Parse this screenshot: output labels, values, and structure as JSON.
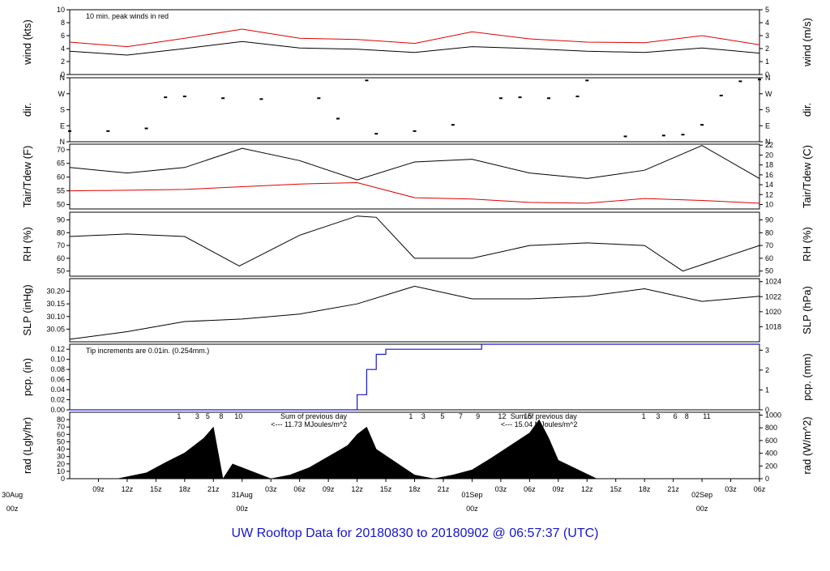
{
  "title": "UW Rooftop Data for 20180830  to  20180902 @ 06:57:37  (UTC)",
  "chart_data": [
    {
      "type": "line",
      "id": "wind",
      "ylabel": "wind (kts)",
      "ylabel_right": "wind (m/s)",
      "ylim": [
        0,
        10
      ],
      "yticks": [
        "0",
        "2",
        "4",
        "6",
        "8",
        "10"
      ],
      "right_ylim": [
        0,
        5
      ],
      "right_yticks": [
        "0",
        "1",
        "2",
        "3",
        "4",
        "5"
      ],
      "annotation": "10 min. peak winds in red",
      "series": [
        {
          "color": "#000000",
          "x": [
            0,
            6,
            12,
            18,
            24,
            30,
            36,
            42,
            48,
            54,
            60,
            66,
            72
          ],
          "y": [
            3.6,
            3.0,
            4.0,
            5.1,
            4.1,
            3.9,
            3.4,
            4.3,
            4.0,
            3.6,
            3.4,
            4.1,
            3.3
          ]
        },
        {
          "color": "#dd0000",
          "x": [
            0,
            6,
            12,
            18,
            24,
            30,
            36,
            42,
            48,
            54,
            60,
            66,
            72
          ],
          "y": [
            5.0,
            4.3,
            5.6,
            7.0,
            5.6,
            5.4,
            4.8,
            6.6,
            5.5,
            5.0,
            4.9,
            6.0,
            4.6
          ]
        }
      ]
    },
    {
      "type": "scatter",
      "id": "dir",
      "ylabel": "dir.",
      "ylabel_right": "dir.",
      "ylim": [
        0,
        360
      ],
      "yticks": [
        "N",
        "E",
        "S",
        "W",
        "N"
      ],
      "right_yticks": [
        "N",
        "E",
        "S",
        "W",
        "N"
      ],
      "series": [
        {
          "color": "#000000",
          "x": [
            0,
            4,
            8,
            10,
            12,
            16,
            20,
            26,
            28,
            31,
            32,
            36,
            40,
            45,
            47,
            50,
            53,
            54,
            58,
            62,
            64,
            66,
            68,
            70,
            72
          ],
          "y": [
            60,
            60,
            75,
            250,
            255,
            245,
            240,
            245,
            130,
            345,
            45,
            60,
            95,
            245,
            250,
            245,
            255,
            345,
            30,
            35,
            40,
            95,
            260,
            340,
            350
          ]
        }
      ]
    },
    {
      "type": "line",
      "id": "temp",
      "ylabel": "Tair/Tdew (F)",
      "ylabel_right": "Tair/Tdew (C)",
      "ylim": [
        48.4,
        72
      ],
      "yticks": [
        "50",
        "55",
        "60",
        "65",
        "70"
      ],
      "right_ylim": [
        9.1,
        22.2
      ],
      "right_yticks": [
        "10",
        "12",
        "14",
        "16",
        "18",
        "20",
        "22"
      ],
      "series": [
        {
          "color": "#000000",
          "x": [
            0,
            6,
            12,
            18,
            24,
            30,
            36,
            42,
            48,
            54,
            60,
            66,
            72
          ],
          "y": [
            63.5,
            61.5,
            63.5,
            70.5,
            66.0,
            59.0,
            65.5,
            66.5,
            61.5,
            59.5,
            62.5,
            71.5,
            59.5
          ]
        },
        {
          "color": "#dd0000",
          "x": [
            0,
            6,
            12,
            18,
            24,
            30,
            36,
            42,
            48,
            54,
            60,
            66,
            72
          ],
          "y": [
            55.0,
            55.2,
            55.5,
            56.5,
            57.5,
            58.0,
            52.5,
            52.0,
            50.8,
            50.5,
            52.2,
            51.5,
            50.5
          ]
        }
      ]
    },
    {
      "type": "line",
      "id": "rh",
      "ylabel": "RH (%)",
      "ylabel_right": "RH (%)",
      "ylim": [
        46,
        96
      ],
      "yticks": [
        "50",
        "60",
        "70",
        "80",
        "90"
      ],
      "right_yticks": [
        "50",
        "60",
        "70",
        "80",
        "90"
      ],
      "series": [
        {
          "color": "#000000",
          "x": [
            0,
            6,
            12,
            17.7,
            24,
            30,
            32,
            36,
            42,
            48,
            54,
            60,
            64,
            72
          ],
          "y": [
            77,
            79,
            77,
            54,
            78,
            93,
            92,
            60,
            60,
            70,
            72,
            70,
            50,
            70
          ]
        }
      ]
    },
    {
      "type": "line",
      "id": "slp",
      "ylabel": "SLP (inHg)",
      "ylabel_right": "SLP (hPa)",
      "ylim": [
        30.0,
        30.25
      ],
      "yticks": [
        "30.05",
        "30.10",
        "30.15",
        "30.20"
      ],
      "right_ylim": [
        1016.0,
        1024.4
      ],
      "right_yticks": [
        "1018",
        "1020",
        "1022",
        "1024"
      ],
      "series": [
        {
          "color": "#000000",
          "x": [
            0,
            6,
            12,
            18,
            24,
            30,
            36,
            42,
            48,
            54,
            60,
            66,
            72
          ],
          "y": [
            30.01,
            30.04,
            30.08,
            30.09,
            30.11,
            30.15,
            30.22,
            30.17,
            30.17,
            30.18,
            30.21,
            30.16,
            30.18
          ]
        }
      ]
    },
    {
      "type": "line",
      "id": "pcp",
      "ylabel": "pcp. (in)",
      "ylabel_right": "pcp. (mm)",
      "ylim": [
        0,
        0.13
      ],
      "yticks": [
        "0.00",
        "0.02",
        "0.04",
        "0.06",
        "0.08",
        "0.10",
        "0.12"
      ],
      "right_ylim": [
        0,
        3.3
      ],
      "right_yticks": [
        "0",
        "1",
        "2",
        "3"
      ],
      "annotation": "Tip increments are 0.01in. (0.254mm.)",
      "series": [
        {
          "color": "#1515d0",
          "x": [
            0,
            29,
            30,
            31,
            32,
            33,
            34,
            36,
            42,
            43,
            72
          ],
          "y": [
            0,
            0,
            0.03,
            0.08,
            0.11,
            0.12,
            0.12,
            0.12,
            0.12,
            0.13,
            0.13
          ]
        }
      ]
    },
    {
      "type": "area",
      "id": "rad",
      "ylabel": "rad (Lgly/hr)",
      "ylabel_right": "rad (W/m^2)",
      "ylim": [
        0,
        90
      ],
      "yticks": [
        "0",
        "10",
        "20",
        "30",
        "40",
        "50",
        "60",
        "70",
        "80"
      ],
      "right_ylim": [
        0,
        1045
      ],
      "right_yticks": [
        "0",
        "200",
        "400",
        "600",
        "800",
        "1000"
      ],
      "sums": [
        "Sum of previous day",
        "<--- 11.73 MJoules/m^2",
        "Sum of previous day",
        "<--- 15.04 MJoules/m^2"
      ],
      "hour_marks": [
        "1",
        "3",
        "5",
        "8",
        "10",
        "1",
        "3",
        "5",
        "7",
        "9",
        "12",
        "15",
        "1",
        "3",
        "6",
        "8",
        "11"
      ],
      "series": [
        {
          "color": "#000000",
          "x": [
            5,
            8,
            10,
            12,
            14,
            15,
            16,
            17,
            21,
            23,
            25,
            27,
            29,
            30,
            31,
            32,
            36,
            38,
            40,
            42,
            44,
            46,
            48,
            49,
            50,
            51,
            55
          ],
          "y": [
            0,
            8,
            22,
            35,
            55,
            70,
            0,
            20,
            0,
            5,
            15,
            30,
            45,
            60,
            70,
            40,
            5,
            0,
            5,
            12,
            28,
            45,
            62,
            80,
            55,
            25,
            0
          ]
        }
      ]
    }
  ],
  "x_axis": {
    "ticks": [
      "09z",
      "12z",
      "15z",
      "18z",
      "21z",
      "03z",
      "06z",
      "09z",
      "12z",
      "15z",
      "18z",
      "21z",
      "03z",
      "06z",
      "09z",
      "12z",
      "15z",
      "18z",
      "21z",
      "03z",
      "06z"
    ],
    "day_labels": [
      {
        "day": "30Aug",
        "hour": "00z"
      },
      {
        "day": "31Aug",
        "hour": "00z"
      },
      {
        "day": "01Sep",
        "hour": "00z"
      },
      {
        "day": "02Sep",
        "hour": "00z"
      }
    ]
  }
}
